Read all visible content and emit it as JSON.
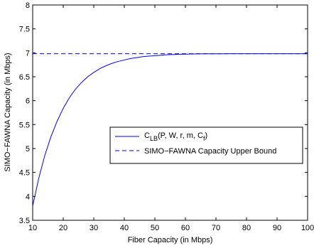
{
  "chart_data": {
    "type": "line",
    "title": "",
    "xlabel": "Fiber Capacity (in Mbps)",
    "ylabel": "SIMO−FAWNA Capacity (in Mbps)",
    "xlim": [
      10,
      100
    ],
    "ylim": [
      3.5,
      8
    ],
    "xticks": [
      10,
      20,
      30,
      40,
      50,
      60,
      70,
      80,
      90,
      100
    ],
    "yticks": [
      3.5,
      4,
      4.5,
      5,
      5.5,
      6,
      6.5,
      7,
      7.5,
      8
    ],
    "xtick_labels": [
      "10",
      "20",
      "30",
      "40",
      "50",
      "60",
      "70",
      "80",
      "90",
      "100"
    ],
    "ytick_labels": [
      "3.5",
      "4",
      "4.5",
      "5",
      "5.5",
      "6",
      "6.5",
      "7",
      "7.5",
      "8"
    ],
    "grid": false,
    "legend_position": "center-right",
    "series": [
      {
        "name": "C_LB(P, W, r, m, C_f)",
        "legend_main": "C",
        "legend_sub": "LB",
        "legend_rest": "(P, W, r, m, C",
        "legend_sub2": "f",
        "legend_end": ")",
        "color": "#0000ff",
        "style": "solid",
        "x": [
          10,
          12,
          14,
          16,
          18,
          20,
          22,
          24,
          26,
          28,
          30,
          32,
          34,
          36,
          38,
          40,
          42,
          44,
          46,
          48,
          50,
          52,
          54,
          56,
          58,
          60,
          62,
          64,
          66,
          70,
          75,
          80,
          85,
          90,
          95,
          100
        ],
        "y": [
          3.8,
          4.38,
          4.86,
          5.25,
          5.57,
          5.84,
          6.06,
          6.24,
          6.38,
          6.5,
          6.59,
          6.67,
          6.73,
          6.78,
          6.82,
          6.85,
          6.88,
          6.9,
          6.92,
          6.93,
          6.94,
          6.95,
          6.96,
          6.965,
          6.97,
          6.972,
          6.975,
          6.977,
          6.978,
          6.979,
          6.98,
          6.98,
          6.98,
          6.98,
          6.98,
          6.98
        ]
      },
      {
        "name": "SIMO−FAWNA Capacity Upper Bound",
        "color": "#0000ff",
        "style": "dashed",
        "x": [
          10,
          100
        ],
        "y": [
          6.98,
          6.98
        ]
      }
    ]
  }
}
